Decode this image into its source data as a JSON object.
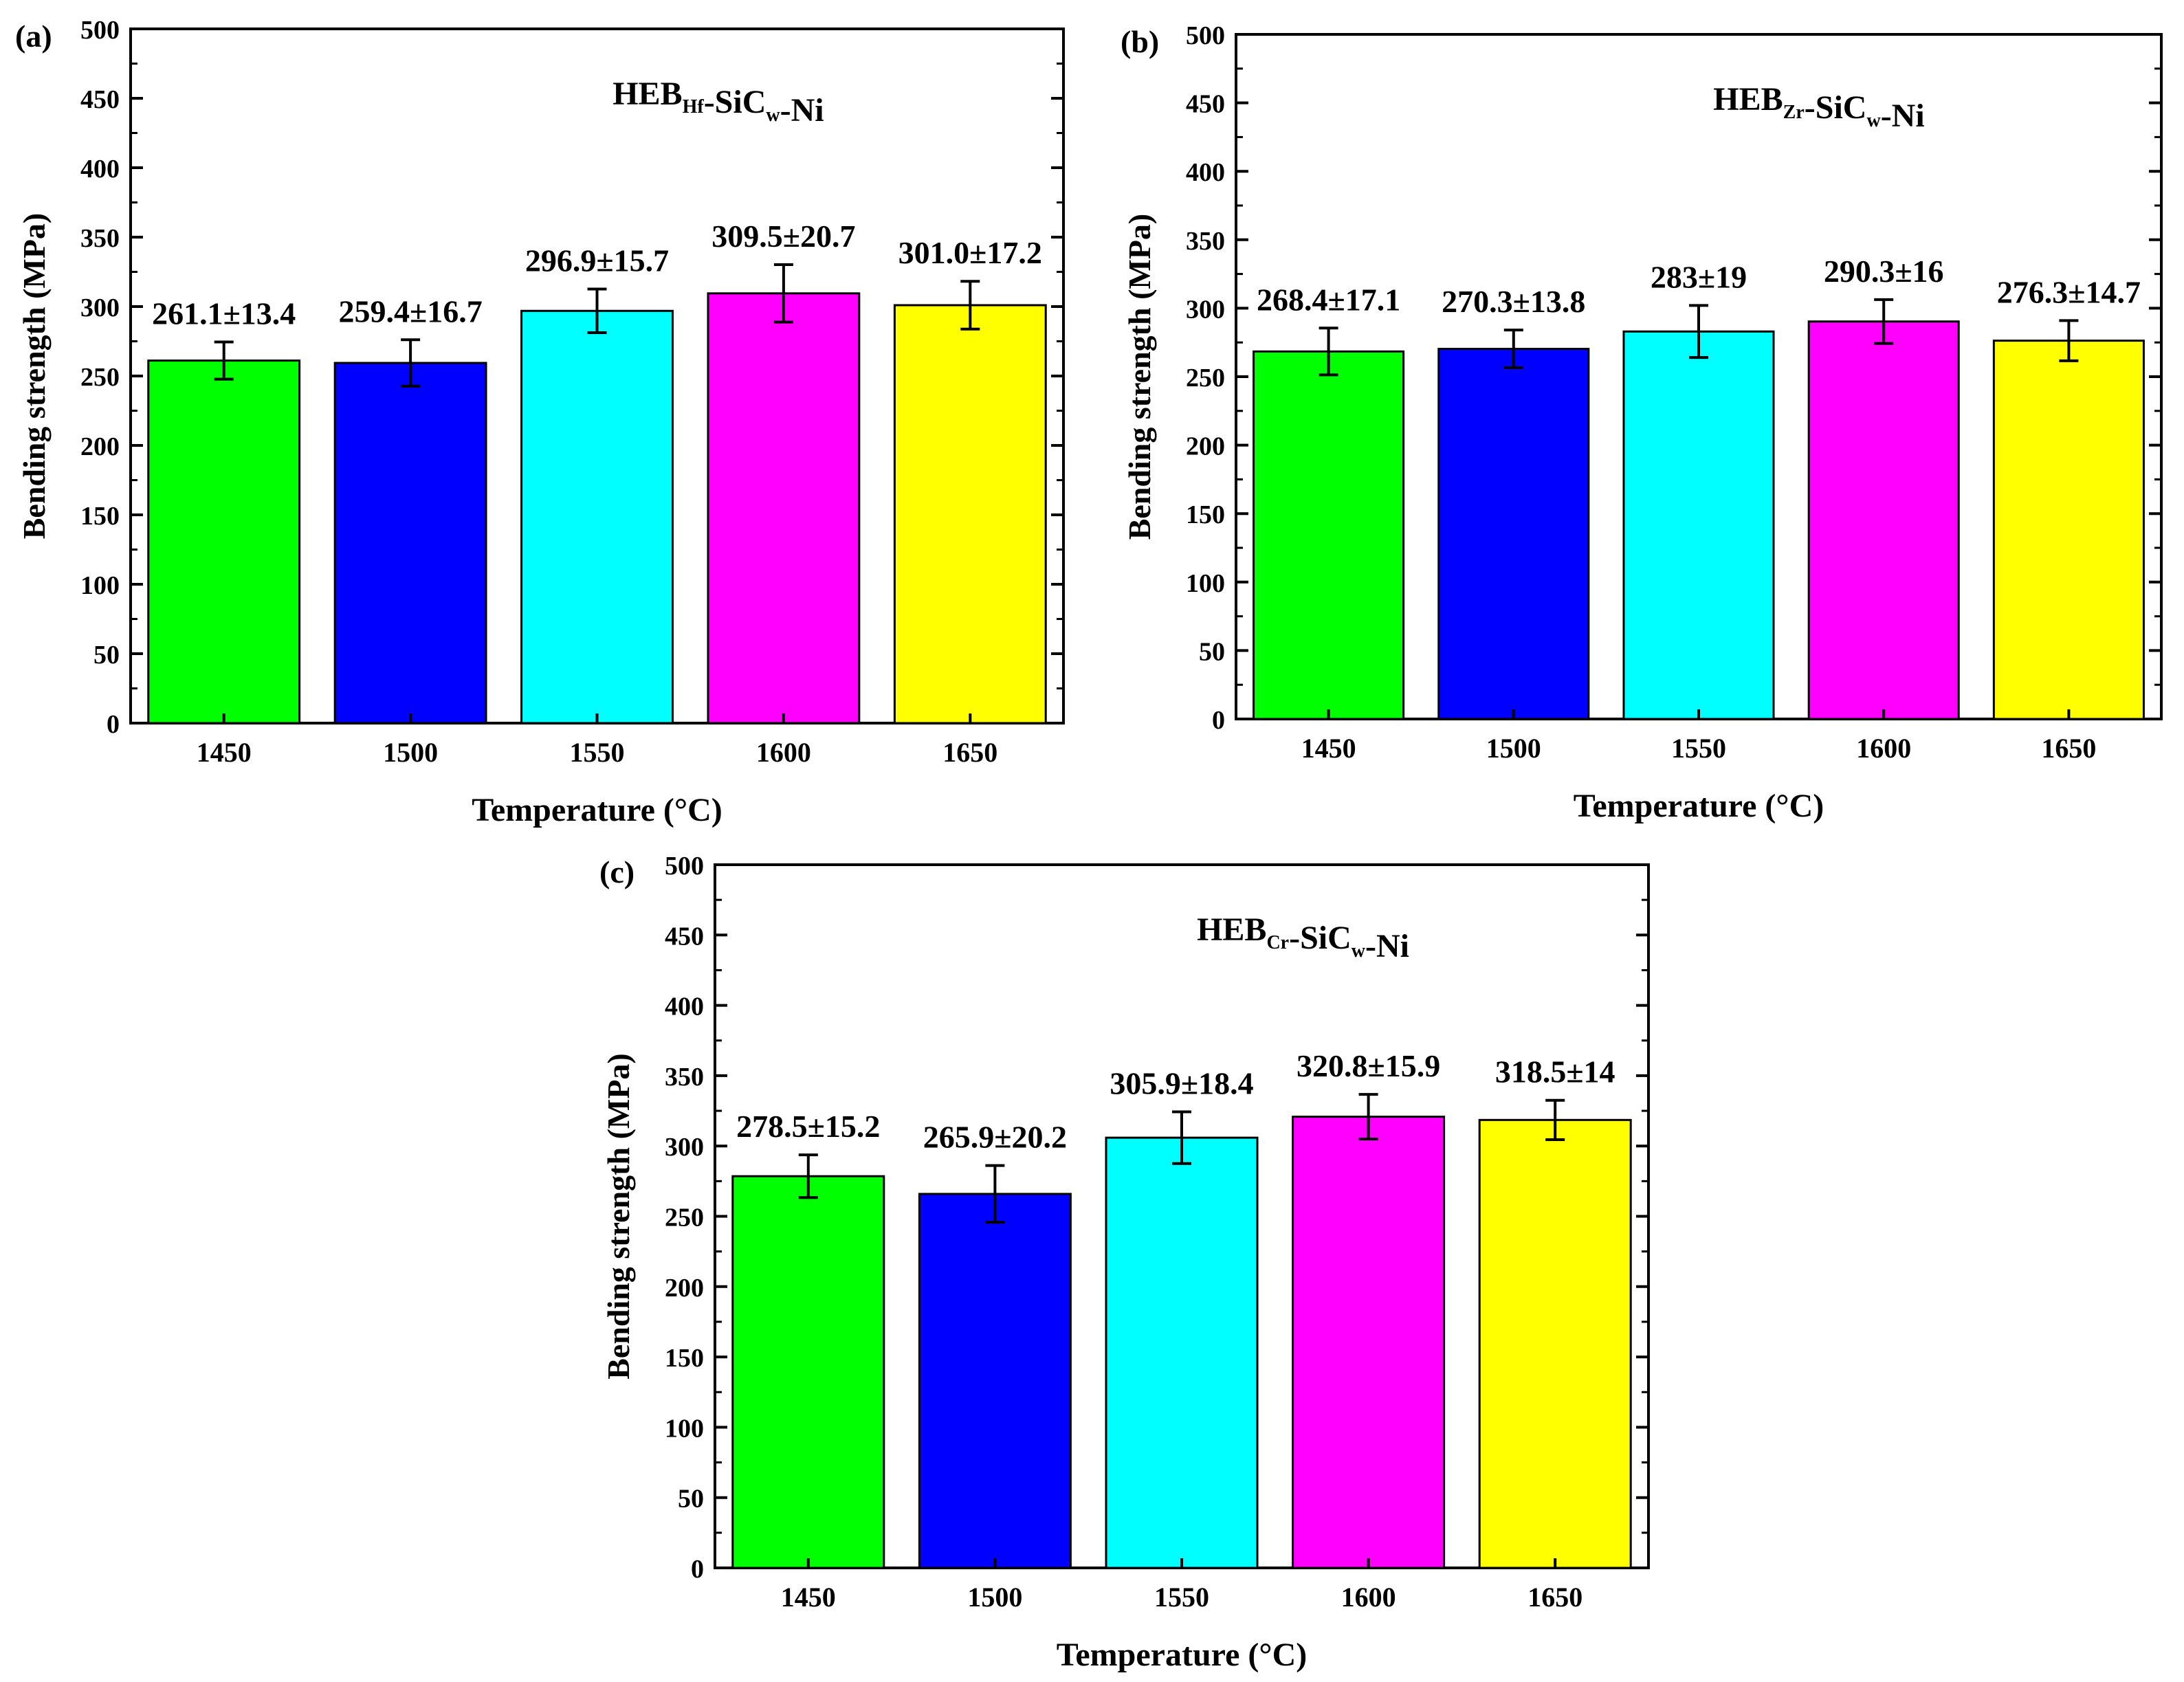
{
  "chart_data": [
    {
      "type": "bar",
      "panel_label": "(a)",
      "series_label": {
        "base": "HEB",
        "sub1": "Hf",
        "mid": "-SiC",
        "sub2": "w",
        "tail": "-Ni"
      },
      "xlabel": "Temperature (°C)",
      "ylabel": "Bending strength (MPa)",
      "categories": [
        "1450",
        "1500",
        "1550",
        "1600",
        "1650"
      ],
      "values": [
        261.1,
        259.4,
        296.9,
        309.5,
        301.0
      ],
      "errors": [
        13.4,
        16.7,
        15.7,
        20.7,
        17.2
      ],
      "value_labels": [
        "261.1±13.4",
        "259.4±16.7",
        "296.9±15.7",
        "309.5±20.7",
        "301.0±17.2"
      ],
      "yticks": [
        "0",
        "50",
        "100",
        "150",
        "200",
        "250",
        "300",
        "350",
        "400",
        "450",
        "500"
      ],
      "ylim": [
        0,
        500
      ]
    },
    {
      "type": "bar",
      "panel_label": "(b)",
      "series_label": {
        "base": "HEB",
        "sub1": "Zr",
        "mid": "-SiC",
        "sub2": "w",
        "tail": "-Ni"
      },
      "xlabel": "Temperature (°C)",
      "ylabel": "Bending strength (MPa)",
      "categories": [
        "1450",
        "1500",
        "1550",
        "1600",
        "1650"
      ],
      "values": [
        268.4,
        270.3,
        283,
        290.3,
        276.3
      ],
      "errors": [
        17.1,
        13.8,
        19,
        16,
        14.7
      ],
      "value_labels": [
        "268.4±17.1",
        "270.3±13.8",
        "283±19",
        "290.3±16",
        "276.3±14.7"
      ],
      "yticks": [
        "0",
        "50",
        "100",
        "150",
        "200",
        "250",
        "300",
        "350",
        "400",
        "450",
        "500"
      ],
      "ylim": [
        0,
        500
      ]
    },
    {
      "type": "bar",
      "panel_label": "(c)",
      "series_label": {
        "base": "HEB",
        "sub1": "Cr",
        "mid": "-SiC",
        "sub2": "w",
        "tail": "-Ni"
      },
      "xlabel": "Temperature (°C)",
      "ylabel": "Bending strength (MPa)",
      "categories": [
        "1450",
        "1500",
        "1550",
        "1600",
        "1650"
      ],
      "values": [
        278.5,
        265.9,
        305.9,
        320.8,
        318.5
      ],
      "errors": [
        15.2,
        20.2,
        18.4,
        15.9,
        14
      ],
      "value_labels": [
        "278.5±15.2",
        "265.9±20.2",
        "305.9±18.4",
        "320.8±15.9",
        "318.5±14"
      ],
      "yticks": [
        "0",
        "50",
        "100",
        "150",
        "200",
        "250",
        "300",
        "350",
        "400",
        "450",
        "500"
      ],
      "ylim": [
        0,
        500
      ]
    }
  ],
  "colors": {
    "bars": [
      "#00ff00",
      "#0000ff",
      "#00ffff",
      "#ff00ff",
      "#ffff00"
    ],
    "axis": "#000000",
    "background": "#ffffff"
  }
}
